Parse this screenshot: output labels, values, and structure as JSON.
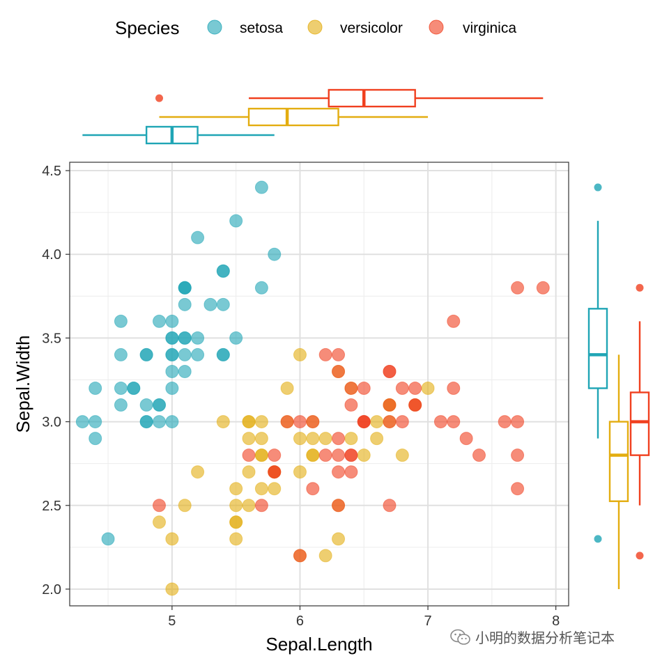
{
  "legend": {
    "title": "Species",
    "entries": [
      "setosa",
      "versicolor",
      "virginica"
    ]
  },
  "colors": {
    "setosa": "#1fa5b5",
    "versicolor": "#e3ad10",
    "virginica": "#f0401f"
  },
  "watermark": {
    "text": "小明的数据分析笔记本",
    "icon": "wechat-icon"
  },
  "chart_data": [
    {
      "type": "scatter",
      "title": "",
      "xlabel": "Sepal.Length",
      "ylabel": "Sepal.Width",
      "xlim": [
        4.2,
        8.1
      ],
      "ylim": [
        1.9,
        4.55
      ],
      "xticks": [
        5,
        6,
        7,
        8
      ],
      "xtick_labels": [
        "5",
        "6",
        "7",
        "8"
      ],
      "yticks": [
        2.0,
        2.5,
        3.0,
        3.5,
        4.0,
        4.5
      ],
      "ytick_labels": [
        "2.0",
        "2.5",
        "3.0",
        "3.5",
        "4.0",
        "4.5"
      ],
      "grid": true,
      "legend_position": "top",
      "series": [
        {
          "name": "setosa",
          "points": [
            [
              5.1,
              3.5
            ],
            [
              4.9,
              3.0
            ],
            [
              4.7,
              3.2
            ],
            [
              4.6,
              3.1
            ],
            [
              5.0,
              3.6
            ],
            [
              5.4,
              3.9
            ],
            [
              4.6,
              3.4
            ],
            [
              5.0,
              3.4
            ],
            [
              4.4,
              2.9
            ],
            [
              4.9,
              3.1
            ],
            [
              5.4,
              3.7
            ],
            [
              4.8,
              3.4
            ],
            [
              4.8,
              3.0
            ],
            [
              4.3,
              3.0
            ],
            [
              5.8,
              4.0
            ],
            [
              5.7,
              4.4
            ],
            [
              5.4,
              3.9
            ],
            [
              5.1,
              3.5
            ],
            [
              5.7,
              3.8
            ],
            [
              5.1,
              3.8
            ],
            [
              5.4,
              3.4
            ],
            [
              5.1,
              3.7
            ],
            [
              4.6,
              3.6
            ],
            [
              5.1,
              3.3
            ],
            [
              4.8,
              3.4
            ],
            [
              5.0,
              3.0
            ],
            [
              5.0,
              3.4
            ],
            [
              5.2,
              3.5
            ],
            [
              5.2,
              3.4
            ],
            [
              4.7,
              3.2
            ],
            [
              4.8,
              3.1
            ],
            [
              5.4,
              3.4
            ],
            [
              5.2,
              4.1
            ],
            [
              5.5,
              4.2
            ],
            [
              4.9,
              3.1
            ],
            [
              5.0,
              3.2
            ],
            [
              5.5,
              3.5
            ],
            [
              4.9,
              3.6
            ],
            [
              4.4,
              3.0
            ],
            [
              5.1,
              3.4
            ],
            [
              5.0,
              3.5
            ],
            [
              4.5,
              2.3
            ],
            [
              4.4,
              3.2
            ],
            [
              5.0,
              3.5
            ],
            [
              5.1,
              3.8
            ],
            [
              4.8,
              3.0
            ],
            [
              5.1,
              3.8
            ],
            [
              4.6,
              3.2
            ],
            [
              5.3,
              3.7
            ],
            [
              5.0,
              3.3
            ]
          ]
        },
        {
          "name": "versicolor",
          "points": [
            [
              7.0,
              3.2
            ],
            [
              6.4,
              3.2
            ],
            [
              6.9,
              3.1
            ],
            [
              5.5,
              2.3
            ],
            [
              6.5,
              2.8
            ],
            [
              5.7,
              2.8
            ],
            [
              6.3,
              3.3
            ],
            [
              4.9,
              2.4
            ],
            [
              6.6,
              2.9
            ],
            [
              5.2,
              2.7
            ],
            [
              5.0,
              2.0
            ],
            [
              5.9,
              3.0
            ],
            [
              6.0,
              2.2
            ],
            [
              6.1,
              2.9
            ],
            [
              5.6,
              2.9
            ],
            [
              6.7,
              3.1
            ],
            [
              5.6,
              3.0
            ],
            [
              5.8,
              2.7
            ],
            [
              6.2,
              2.2
            ],
            [
              5.6,
              2.5
            ],
            [
              5.9,
              3.2
            ],
            [
              6.1,
              2.8
            ],
            [
              6.3,
              2.5
            ],
            [
              6.1,
              2.8
            ],
            [
              6.4,
              2.9
            ],
            [
              6.6,
              3.0
            ],
            [
              6.8,
              2.8
            ],
            [
              6.7,
              3.0
            ],
            [
              6.0,
              2.9
            ],
            [
              5.7,
              2.6
            ],
            [
              5.5,
              2.4
            ],
            [
              5.5,
              2.4
            ],
            [
              5.8,
              2.7
            ],
            [
              6.0,
              2.7
            ],
            [
              5.4,
              3.0
            ],
            [
              6.0,
              3.4
            ],
            [
              6.7,
              3.1
            ],
            [
              6.3,
              2.3
            ],
            [
              5.6,
              3.0
            ],
            [
              5.5,
              2.5
            ],
            [
              5.5,
              2.6
            ],
            [
              6.1,
              3.0
            ],
            [
              5.8,
              2.6
            ],
            [
              5.0,
              2.3
            ],
            [
              5.6,
              2.7
            ],
            [
              5.7,
              3.0
            ],
            [
              5.7,
              2.9
            ],
            [
              6.2,
              2.9
            ],
            [
              5.1,
              2.5
            ],
            [
              5.7,
              2.8
            ]
          ]
        },
        {
          "name": "virginica",
          "points": [
            [
              6.3,
              3.3
            ],
            [
              5.8,
              2.7
            ],
            [
              7.1,
              3.0
            ],
            [
              6.3,
              2.9
            ],
            [
              6.5,
              3.0
            ],
            [
              7.6,
              3.0
            ],
            [
              4.9,
              2.5
            ],
            [
              7.3,
              2.9
            ],
            [
              6.7,
              2.5
            ],
            [
              7.2,
              3.6
            ],
            [
              6.5,
              3.2
            ],
            [
              6.4,
              2.7
            ],
            [
              6.8,
              3.0
            ],
            [
              5.7,
              2.5
            ],
            [
              5.8,
              2.8
            ],
            [
              6.4,
              3.2
            ],
            [
              6.5,
              3.0
            ],
            [
              7.7,
              3.8
            ],
            [
              7.7,
              2.6
            ],
            [
              6.0,
              2.2
            ],
            [
              6.9,
              3.2
            ],
            [
              5.6,
              2.8
            ],
            [
              7.7,
              2.8
            ],
            [
              6.3,
              2.7
            ],
            [
              6.7,
              3.3
            ],
            [
              7.2,
              3.2
            ],
            [
              6.2,
              2.8
            ],
            [
              6.1,
              3.0
            ],
            [
              6.4,
              2.8
            ],
            [
              7.2,
              3.0
            ],
            [
              7.4,
              2.8
            ],
            [
              7.9,
              3.8
            ],
            [
              6.4,
              2.8
            ],
            [
              6.3,
              2.8
            ],
            [
              6.1,
              2.6
            ],
            [
              7.7,
              3.0
            ],
            [
              6.3,
              3.4
            ],
            [
              6.4,
              3.1
            ],
            [
              6.0,
              3.0
            ],
            [
              6.9,
              3.1
            ],
            [
              6.7,
              3.1
            ],
            [
              6.9,
              3.1
            ],
            [
              5.8,
              2.7
            ],
            [
              6.8,
              3.2
            ],
            [
              6.7,
              3.3
            ],
            [
              6.7,
              3.0
            ],
            [
              6.3,
              2.5
            ],
            [
              6.5,
              3.0
            ],
            [
              6.2,
              3.4
            ],
            [
              5.9,
              3.0
            ]
          ]
        }
      ]
    },
    {
      "type": "boxplot",
      "orientation": "horizontal",
      "variable": "Sepal.Length",
      "series": [
        {
          "name": "setosa",
          "whisker_low": 4.3,
          "q1": 4.8,
          "median": 5.0,
          "q3": 5.2,
          "whisker_high": 5.8,
          "outliers": []
        },
        {
          "name": "versicolor",
          "whisker_low": 4.9,
          "q1": 5.6,
          "median": 5.9,
          "q3": 6.3,
          "whisker_high": 7.0,
          "outliers": []
        },
        {
          "name": "virginica",
          "whisker_low": 5.6,
          "q1": 6.225,
          "median": 6.5,
          "q3": 6.9,
          "whisker_high": 7.9,
          "outliers": [
            4.9
          ]
        }
      ]
    },
    {
      "type": "boxplot",
      "orientation": "vertical",
      "variable": "Sepal.Width",
      "series": [
        {
          "name": "setosa",
          "whisker_low": 2.9,
          "q1": 3.2,
          "median": 3.4,
          "q3": 3.675,
          "whisker_high": 4.2,
          "outliers": [
            4.4,
            2.3
          ]
        },
        {
          "name": "versicolor",
          "whisker_low": 2.0,
          "q1": 2.525,
          "median": 2.8,
          "q3": 3.0,
          "whisker_high": 3.4,
          "outliers": []
        },
        {
          "name": "virginica",
          "whisker_low": 2.5,
          "q1": 2.8,
          "median": 3.0,
          "q3": 3.175,
          "whisker_high": 3.6,
          "outliers": [
            3.8,
            2.2
          ]
        }
      ]
    }
  ]
}
